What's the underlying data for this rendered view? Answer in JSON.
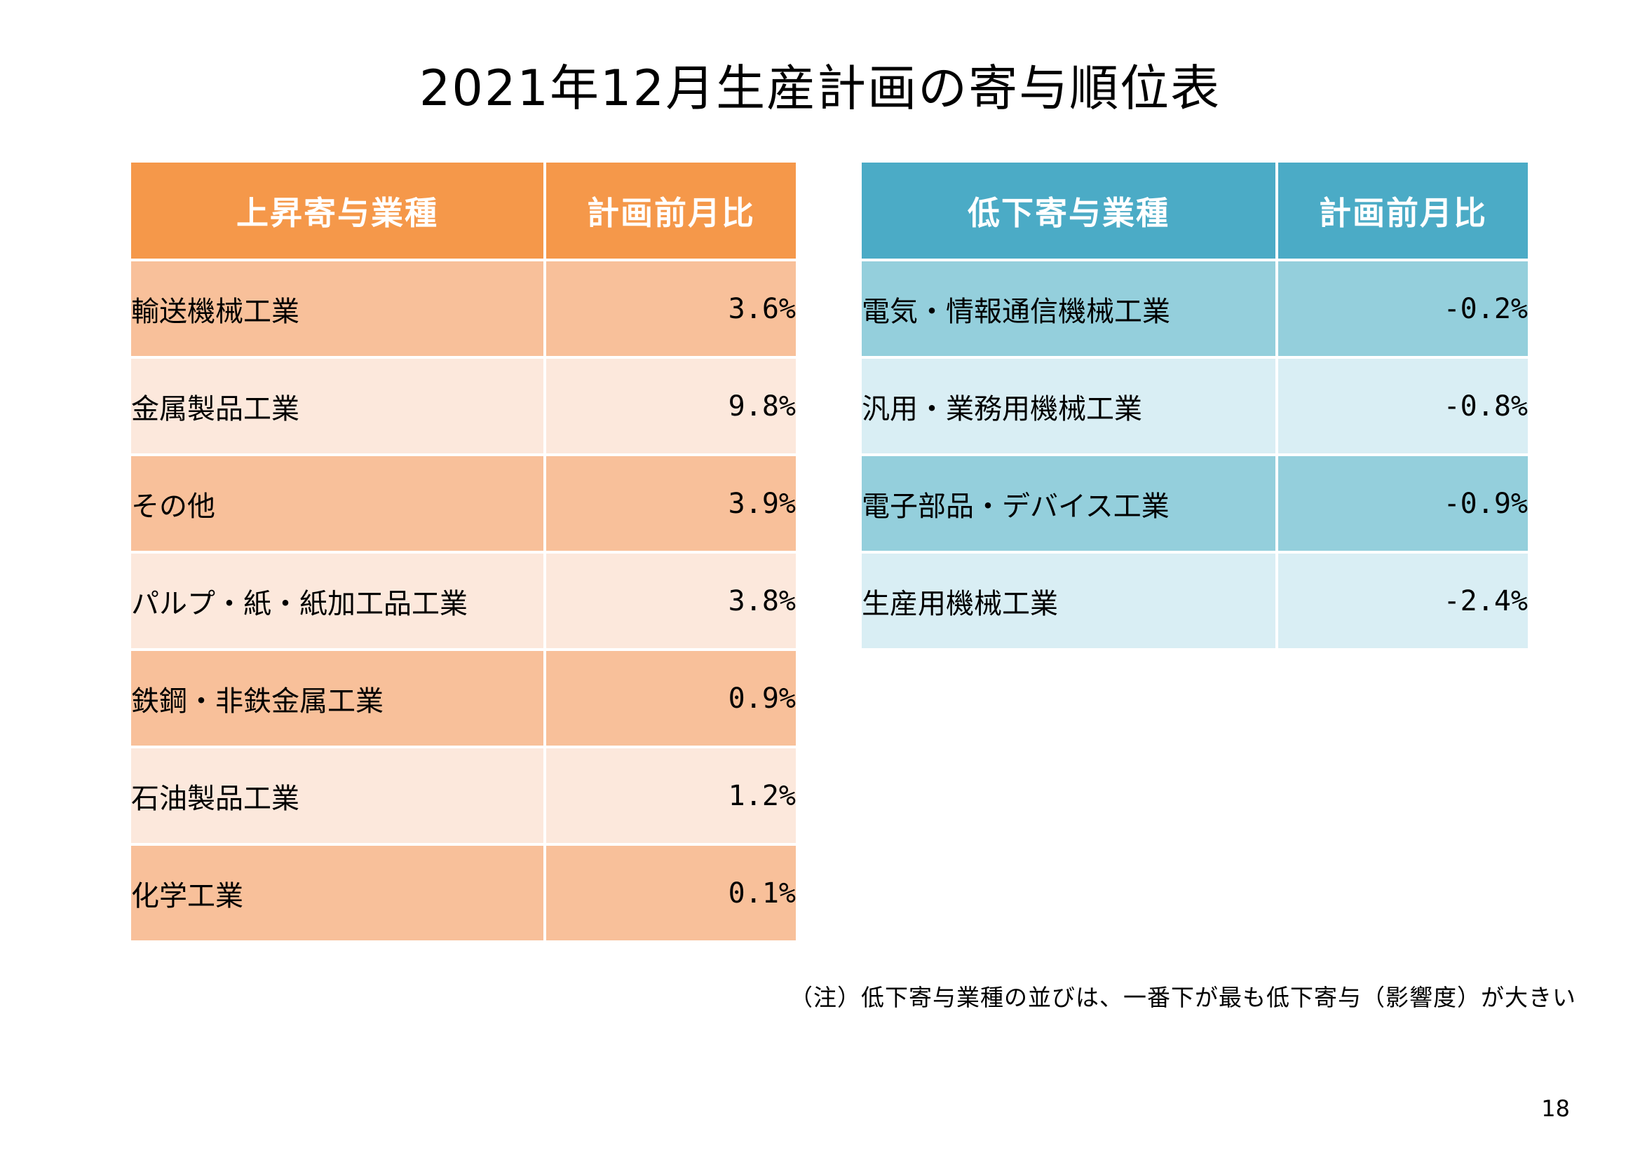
{
  "title": "2021年12月生産計画の寄与順位表",
  "up_table": {
    "headers": [
      "上昇寄与業種",
      "計画前月比"
    ],
    "rows": [
      {
        "industry": "輸送機械工業",
        "value": "3.6%"
      },
      {
        "industry": "金属製品工業",
        "value": "9.8%"
      },
      {
        "industry": "その他",
        "value": "3.9%"
      },
      {
        "industry": "パルプ・紙・紙加工品工業",
        "value": "3.8%"
      },
      {
        "industry": "鉄鋼・非鉄金属工業",
        "value": "0.9%"
      },
      {
        "industry": "石油製品工業",
        "value": "1.2%"
      },
      {
        "industry": "化学工業",
        "value": "0.1%"
      }
    ],
    "colors": {
      "header": "#f5984a",
      "row_dark": "#f8c09a",
      "row_light": "#fce8dc"
    }
  },
  "down_table": {
    "headers": [
      "低下寄与業種",
      "計画前月比"
    ],
    "rows": [
      {
        "industry": "電気・情報通信機械工業",
        "value": "-0.2%"
      },
      {
        "industry": "汎用・業務用機械工業",
        "value": "-0.8%"
      },
      {
        "industry": "電子部品・デバイス工業",
        "value": "-0.9%"
      },
      {
        "industry": "生産用機械工業",
        "value": "-2.4%"
      }
    ],
    "colors": {
      "header": "#4babc6",
      "row_dark": "#94cfdc",
      "row_light": "#d9eef4"
    }
  },
  "note": "（注）低下寄与業種の並びは、一番下が最も低下寄与（影響度）が大きい",
  "page_number": "18"
}
